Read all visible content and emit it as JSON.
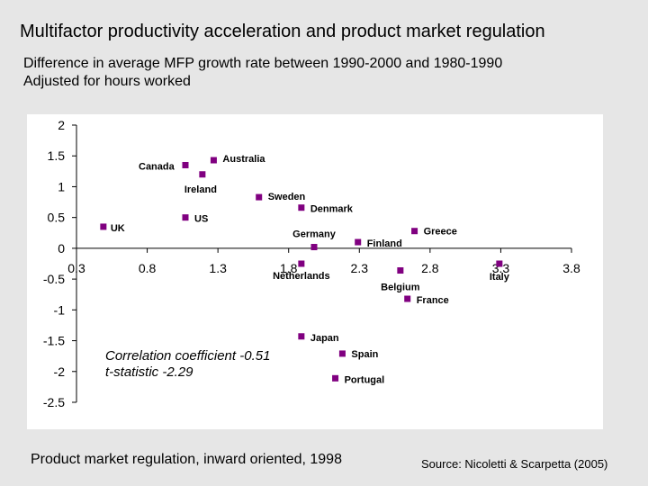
{
  "page": {
    "title": "Multifactor productivity acceleration and product market regulation",
    "subtitle_line1": "Difference in average MFP growth rate between 1990-2000 and 1980-1990",
    "subtitle_line2": "Adjusted for hours worked",
    "source": "Source: Nicoletti & Scarpetta (2005)"
  },
  "chart_data": {
    "type": "scatter",
    "title": "Multifactor productivity acceleration and product market regulation",
    "xlabel": "Product market regulation, inward oriented, 1998",
    "ylabel": "",
    "xlim": [
      0.3,
      3.8
    ],
    "ylim": [
      -2.5,
      2
    ],
    "xticks": [
      "0.3",
      "0.8",
      "1.3",
      "1.8",
      "2.3",
      "2.8",
      "3.3",
      "3.8"
    ],
    "yticks": [
      "2",
      "1.5",
      "1",
      "0.5",
      "0",
      "-0.5",
      "-1",
      "-1.5",
      "-2",
      "-2.5"
    ],
    "marker_color": "#800080",
    "annotation_line1": "Correlation coefficient -0.51",
    "annotation_line2": "t-statistic -2.29",
    "points": [
      {
        "label": "Canada",
        "x": 1.07,
        "y": 1.35
      },
      {
        "label": "Australia",
        "x": 1.27,
        "y": 1.43
      },
      {
        "label": "Ireland",
        "x": 1.19,
        "y": 1.2
      },
      {
        "label": "Sweden",
        "x": 1.59,
        "y": 0.83
      },
      {
        "label": "Denmark",
        "x": 1.89,
        "y": 0.66
      },
      {
        "label": "UK",
        "x": 0.49,
        "y": 0.35
      },
      {
        "label": "US",
        "x": 1.07,
        "y": 0.5
      },
      {
        "label": "Germany",
        "x": 1.98,
        "y": 0.02
      },
      {
        "label": "Finland",
        "x": 2.29,
        "y": 0.1
      },
      {
        "label": "Greece",
        "x": 2.69,
        "y": 0.28
      },
      {
        "label": "Netherlands",
        "x": 1.89,
        "y": -0.25
      },
      {
        "label": "Belgium",
        "x": 2.59,
        "y": -0.36
      },
      {
        "label": "France",
        "x": 2.64,
        "y": -0.82
      },
      {
        "label": "Italy",
        "x": 3.29,
        "y": -0.25
      },
      {
        "label": "Japan",
        "x": 1.89,
        "y": -1.43
      },
      {
        "label": "Spain",
        "x": 2.18,
        "y": -1.71
      },
      {
        "label": "Portugal",
        "x": 2.13,
        "y": -2.11
      }
    ]
  }
}
